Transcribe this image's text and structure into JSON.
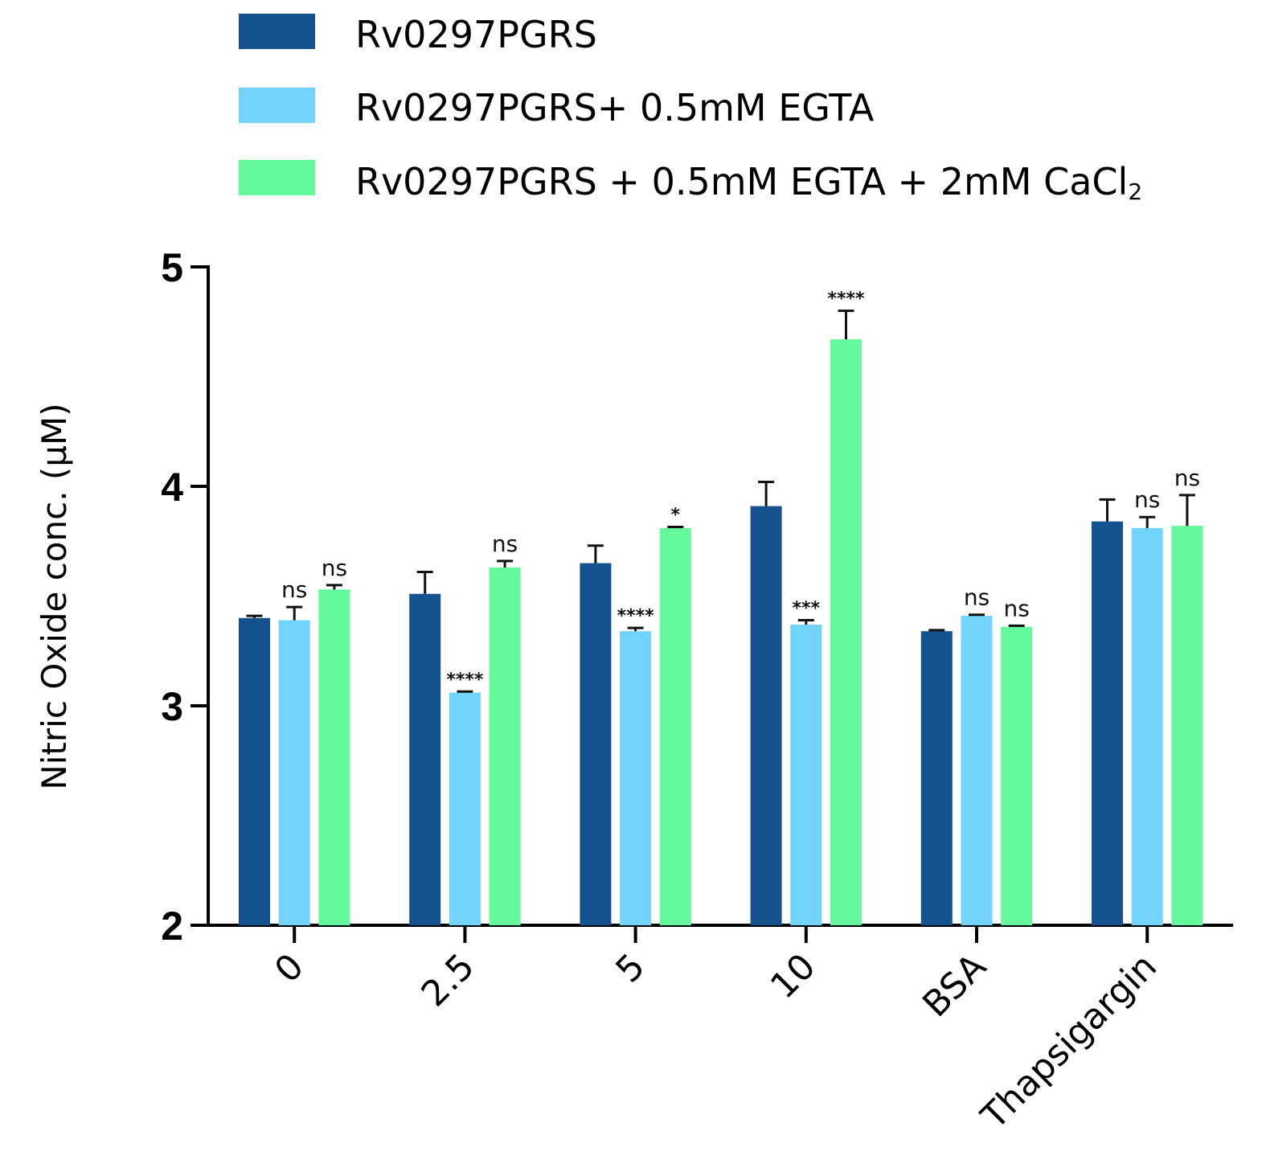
{
  "chart_data": {
    "type": "bar",
    "title": "",
    "xlabel": "",
    "ylabel": "Nitric Oxide conc. (μM)",
    "ylim": [
      2,
      5
    ],
    "yticks": [
      "2",
      "3",
      "4",
      "5"
    ],
    "categories": [
      "0",
      "2.5",
      "5",
      "10",
      "BSA",
      "Thapsigargin"
    ],
    "legend_position": "top",
    "series": [
      {
        "name": "Rv0297PGRS",
        "name_suffix": "",
        "color": "#14528f",
        "values": [
          3.4,
          3.51,
          3.65,
          3.91,
          3.34,
          3.84
        ],
        "errors": [
          0.01,
          0.1,
          0.08,
          0.11,
          0.005,
          0.1
        ],
        "significance": [
          "",
          "",
          "",
          "",
          "",
          ""
        ]
      },
      {
        "name": "Rv0297PGRS+ 0.5mM EGTA",
        "name_suffix": "",
        "color": "#72d4fd",
        "values": [
          3.39,
          3.06,
          3.34,
          3.37,
          3.41,
          3.81
        ],
        "errors": [
          0.06,
          0.005,
          0.015,
          0.02,
          0.005,
          0.05
        ],
        "significance": [
          "ns",
          "****",
          "****",
          "***",
          "ns",
          "ns"
        ]
      },
      {
        "name": "Rv0297PGRS + 0.5mM EGTA + 2mM CaCl",
        "name_suffix": "2",
        "color": "#64f99a",
        "values": [
          3.53,
          3.63,
          3.81,
          4.67,
          3.36,
          3.82
        ],
        "errors": [
          0.02,
          0.03,
          0.005,
          0.13,
          0.005,
          0.14
        ],
        "significance": [
          "ns",
          "ns",
          "*",
          "****",
          "ns",
          "ns"
        ]
      }
    ]
  }
}
